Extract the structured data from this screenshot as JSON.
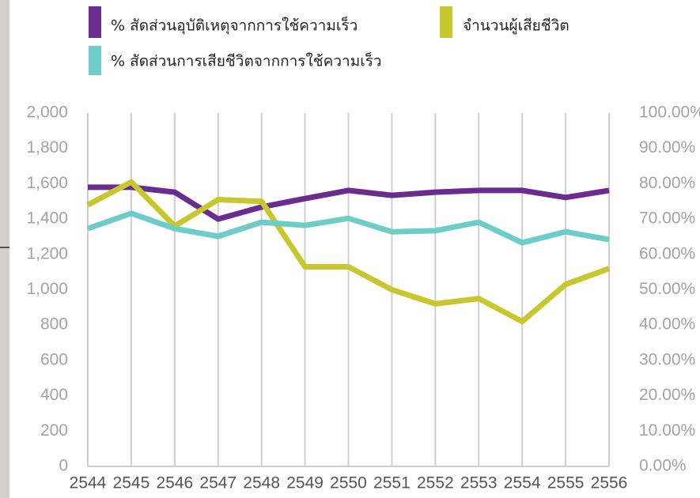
{
  "chart_data": {
    "type": "line",
    "categories": [
      "2544",
      "2545",
      "2546",
      "2547",
      "2548",
      "2549",
      "2550",
      "2551",
      "2552",
      "2553",
      "2554",
      "2555",
      "2556"
    ],
    "series": [
      {
        "name": "% สัดส่วนอุบัติเหตุจากการใช้ความเร็ว",
        "color": "#6a2d8f",
        "axis": "y2",
        "values": [
          79,
          79,
          77.6,
          70,
          73.4,
          75.8,
          78.1,
          76.7,
          77.6,
          78.1,
          78.1,
          76.1,
          78.1
        ]
      },
      {
        "name": "จำนวนผู้เสียชีวิต",
        "color": "#c9c72e",
        "values": [
          1480,
          1610,
          1360,
          1510,
          1500,
          1130,
          1130,
          1000,
          920,
          950,
          820,
          1030,
          1120
        ]
      },
      {
        "name": "% สัดส่วนการเสียชีวิตจากการใช้ความเร็ว",
        "color": "#6dcdc9",
        "axis": "y2",
        "values": [
          67.3,
          71.6,
          67.3,
          65.1,
          69.1,
          68.2,
          70.2,
          66.4,
          66.7,
          69.1,
          63.3,
          66.4,
          64.2
        ]
      }
    ],
    "ylim": [
      0,
      2000
    ],
    "yticks": [
      0,
      200,
      400,
      600,
      800,
      {
        "value": 1000,
        "label": "1,000"
      },
      {
        "value": 1200,
        "label": "1,200"
      },
      {
        "value": 1400,
        "label": "1,400"
      },
      {
        "value": 1600,
        "label": "1,600"
      },
      {
        "value": 1800,
        "label": "1,800"
      },
      {
        "value": 2000,
        "label": "2,000"
      }
    ],
    "y2lim": [
      0,
      100
    ],
    "y2ticks": [
      {
        "value": 0,
        "label": "0.00%"
      },
      {
        "value": 10,
        "label": "10.00%"
      },
      {
        "value": 20,
        "label": "20.00%"
      },
      {
        "value": 30,
        "label": "30.00%"
      },
      {
        "value": 40,
        "label": "40.00%"
      },
      {
        "value": 50,
        "label": "50.00%"
      },
      {
        "value": 60,
        "label": "60.00%"
      },
      {
        "value": 70,
        "label": "70.00%"
      },
      {
        "value": 80,
        "label": "80.00%"
      },
      {
        "value": 90,
        "label": "90.00%"
      },
      {
        "value": 100,
        "label": "100.00%"
      }
    ],
    "grid": true
  }
}
